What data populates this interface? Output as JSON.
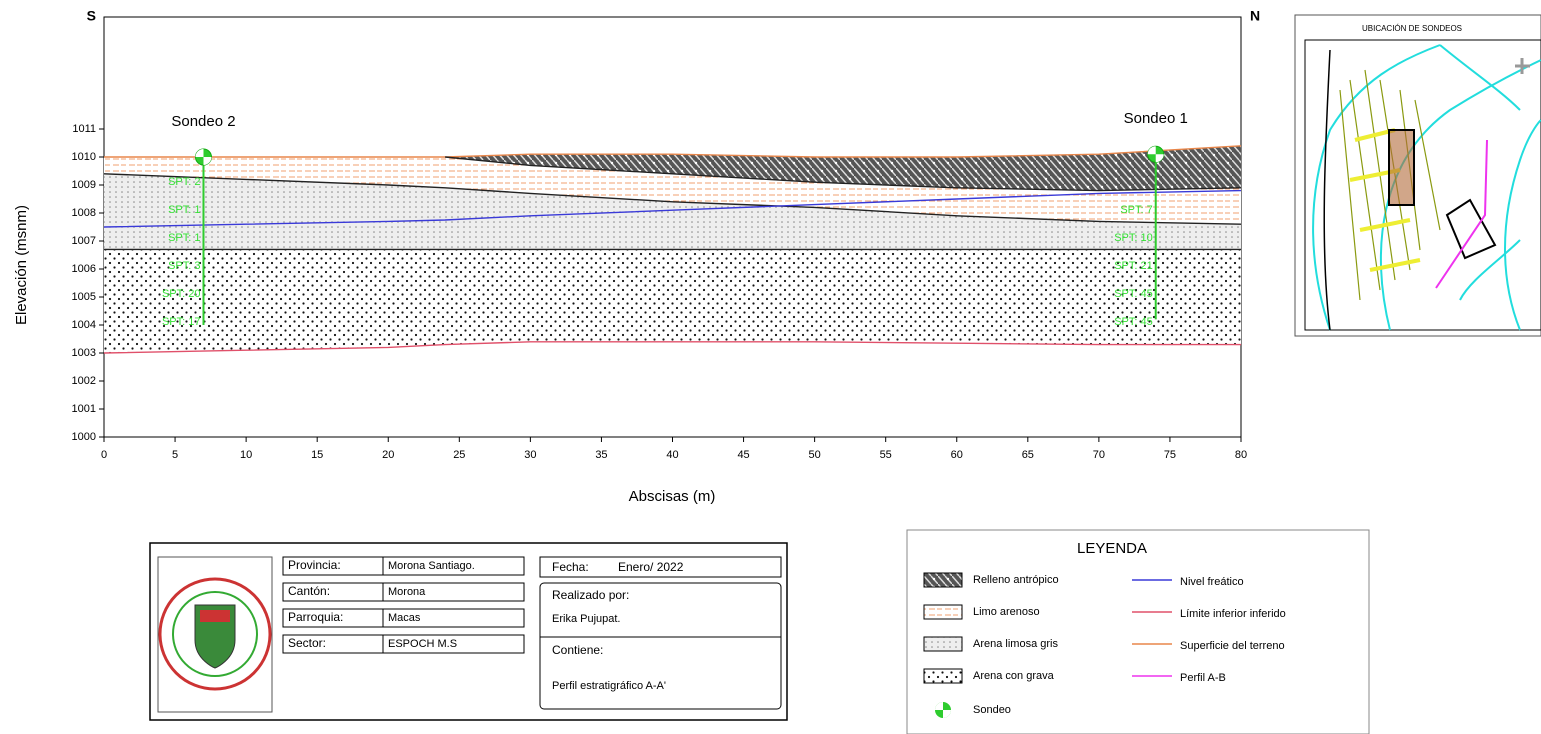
{
  "chart_data": {
    "type": "profile",
    "x_label": "Abscisas (m)",
    "y_label": "Elevación (msnm)",
    "left_end": "S",
    "right_end": "N",
    "xlim": [
      0,
      80
    ],
    "xticks": [
      0,
      5,
      10,
      15,
      20,
      25,
      30,
      35,
      40,
      45,
      50,
      55,
      60,
      65,
      70,
      75,
      80
    ],
    "ylim": [
      1000,
      1015
    ],
    "yticks": [
      1000,
      1001,
      1002,
      1003,
      1004,
      1005,
      1006,
      1007,
      1008,
      1009,
      1010,
      1011
    ],
    "x": [
      0,
      10,
      20,
      24,
      30,
      40,
      50,
      60,
      70,
      80
    ],
    "series": [
      {
        "name": "Superficie del terreno",
        "color": "#e8864a",
        "values": [
          1010,
          1010,
          1010,
          1010,
          1010.1,
          1010.1,
          1010,
          1010,
          1010.1,
          1010.4
        ]
      },
      {
        "color": "#222222",
        "values": [
          null,
          null,
          null,
          1010,
          1009.7,
          1009.4,
          1009.1,
          1008.9,
          1008.8,
          1008.9
        ]
      },
      {
        "color": "#222222",
        "values": [
          1009.4,
          1009.2,
          1009.0,
          1008.9,
          1008.7,
          1008.4,
          1008.2,
          1007.9,
          1007.7,
          1007.6
        ]
      },
      {
        "name": "Nivel freático",
        "color": "#3a3ad8",
        "values": [
          1007.5,
          1007.6,
          1007.7,
          1007.75,
          1007.9,
          1008.1,
          1008.3,
          1008.5,
          1008.7,
          1008.8
        ]
      },
      {
        "color": "#222222",
        "values": [
          1006.7,
          1006.7,
          1006.7,
          1006.7,
          1006.7,
          1006.7,
          1006.7,
          1006.7,
          1006.7,
          1006.7
        ]
      },
      {
        "name": "Límite inferior inferido",
        "color": "#e0506a",
        "values": [
          1003,
          1003.1,
          1003.2,
          1003.3,
          1003.4,
          1003.4,
          1003.4,
          1003.35,
          1003.3,
          1003.3
        ]
      }
    ],
    "boreholes": [
      {
        "name": "Sondeo 2",
        "x": 7,
        "top": 1010,
        "bottom": 1004,
        "elev": [
          1009.1,
          1008.1,
          1007.1,
          1006.1,
          1005.1,
          1004.1
        ],
        "values": [
          2,
          1,
          1,
          3,
          20,
          17
        ],
        "value_labels": [
          "SPT: 2",
          "SPT: 1",
          "SPT: 1",
          "SPT: 3",
          "SPT: 20",
          "SPT: 17"
        ]
      },
      {
        "name": "Sondeo 1",
        "x": 74,
        "top": 1010.1,
        "bottom": 1004.2,
        "elev": [
          1008.1,
          1007.1,
          1006.1,
          1005.1,
          1004.1
        ],
        "values": [
          7,
          10,
          21,
          45,
          45
        ],
        "value_labels": [
          "SPT: 7",
          "SPT: 10",
          "SPT: 21",
          "SPT: 45",
          "SPT: 45"
        ]
      }
    ]
  },
  "map": {
    "title": "UBICACIÓN DE SONDEOS"
  },
  "legend": {
    "title": "LEYENDA",
    "items": [
      {
        "label": "Relleno antrópico"
      },
      {
        "label": "Limo arenoso"
      },
      {
        "label": "Arena limosa gris"
      },
      {
        "label": "Arena con grava"
      },
      {
        "label": "Sondeo"
      },
      {
        "label": "Nivel freático",
        "color": "#3a3ad8"
      },
      {
        "label": "Límite inferior inferido",
        "color": "#e0506a"
      },
      {
        "label": "Superficie del terreno",
        "color": "#e8864a"
      },
      {
        "label": "Perfil A-B",
        "color": "#ee33ee"
      }
    ]
  },
  "info": {
    "rows": [
      [
        "Provincia:",
        "Morona Santiago."
      ],
      [
        "Cantón:",
        "Morona"
      ],
      [
        "Parroquia:",
        "Macas"
      ],
      [
        "Sector:",
        "ESPOCH M.S"
      ]
    ],
    "date": [
      "Fecha:",
      "Enero/ 2022"
    ],
    "author": [
      "Realizado por:",
      "Erika Pujupat."
    ],
    "content": [
      "Contiene:",
      "Perfil estratigráfico A-A'"
    ]
  }
}
